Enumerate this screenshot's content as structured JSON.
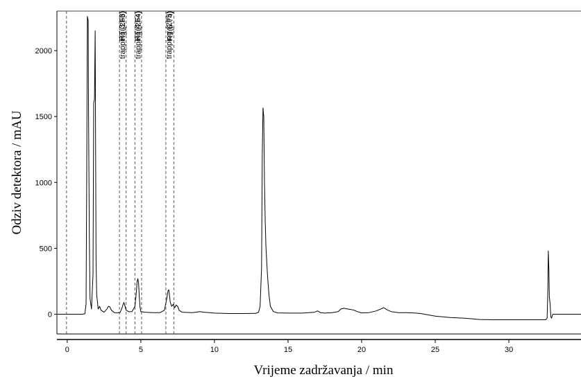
{
  "chart_data": {
    "type": "line",
    "title": "",
    "xlabel": "Vrijeme zadržavanja / min",
    "ylabel": "Odziv detektora / mAU",
    "xlim": [
      -0.7,
      34.9
    ],
    "ylim": [
      -150,
      2300
    ],
    "x_ticks": [
      0,
      5,
      10,
      15,
      20,
      25,
      30
    ],
    "y_ticks": [
      0,
      500,
      1000,
      1500,
      2000
    ],
    "x_tick_labels": [
      "0",
      "5",
      "10",
      "15",
      "20",
      "25",
      "30"
    ],
    "y_tick_labels": [
      "0",
      "500",
      "1000",
      "1500",
      "2000"
    ],
    "grid": false,
    "legend": "none",
    "line_color": "#000000",
    "marker_color": "#555555",
    "series": [
      {
        "values": [
          [
            -0.7,
            0
          ],
          [
            0.0,
            0
          ],
          [
            0.5,
            0
          ],
          [
            1.0,
            0
          ],
          [
            1.2,
            3
          ],
          [
            1.28,
            80
          ],
          [
            1.32,
            900
          ],
          [
            1.37,
            2260
          ],
          [
            1.42,
            2230
          ],
          [
            1.45,
            1500
          ],
          [
            1.5,
            600
          ],
          [
            1.55,
            120
          ],
          [
            1.65,
            40
          ],
          [
            1.75,
            300
          ],
          [
            1.8,
            1600
          ],
          [
            1.85,
            1630
          ],
          [
            1.9,
            2150
          ],
          [
            1.93,
            1200
          ],
          [
            1.96,
            400
          ],
          [
            2.0,
            150
          ],
          [
            2.1,
            40
          ],
          [
            2.2,
            60
          ],
          [
            2.3,
            30
          ],
          [
            2.5,
            15
          ],
          [
            2.7,
            40
          ],
          [
            2.8,
            60
          ],
          [
            2.9,
            55
          ],
          [
            3.0,
            30
          ],
          [
            3.2,
            12
          ],
          [
            3.4,
            10
          ],
          [
            3.6,
            15
          ],
          [
            3.7,
            40
          ],
          [
            3.8,
            75
          ],
          [
            3.85,
            90
          ],
          [
            3.9,
            70
          ],
          [
            4.0,
            30
          ],
          [
            4.2,
            18
          ],
          [
            4.4,
            20
          ],
          [
            4.6,
            60
          ],
          [
            4.7,
            170
          ],
          [
            4.75,
            250
          ],
          [
            4.8,
            270
          ],
          [
            4.85,
            230
          ],
          [
            4.9,
            120
          ],
          [
            4.95,
            50
          ],
          [
            5.0,
            20
          ],
          [
            5.3,
            15
          ],
          [
            5.8,
            12
          ],
          [
            6.3,
            12
          ],
          [
            6.6,
            30
          ],
          [
            6.75,
            110
          ],
          [
            6.85,
            180
          ],
          [
            6.9,
            185
          ],
          [
            6.95,
            140
          ],
          [
            7.0,
            90
          ],
          [
            7.1,
            60
          ],
          [
            7.2,
            75
          ],
          [
            7.3,
            50
          ],
          [
            7.4,
            70
          ],
          [
            7.5,
            60
          ],
          [
            7.6,
            30
          ],
          [
            7.8,
            15
          ],
          [
            8.5,
            12
          ],
          [
            9.0,
            20
          ],
          [
            9.3,
            15
          ],
          [
            10.0,
            8
          ],
          [
            11.0,
            5
          ],
          [
            12.0,
            5
          ],
          [
            12.8,
            6
          ],
          [
            13.0,
            15
          ],
          [
            13.1,
            60
          ],
          [
            13.2,
            350
          ],
          [
            13.25,
            1200
          ],
          [
            13.3,
            1565
          ],
          [
            13.35,
            1500
          ],
          [
            13.4,
            1000
          ],
          [
            13.45,
            700
          ],
          [
            13.5,
            500
          ],
          [
            13.6,
            300
          ],
          [
            13.7,
            150
          ],
          [
            13.8,
            60
          ],
          [
            14.0,
            20
          ],
          [
            14.3,
            10
          ],
          [
            15.0,
            8
          ],
          [
            16.0,
            8
          ],
          [
            16.8,
            15
          ],
          [
            17.0,
            25
          ],
          [
            17.2,
            12
          ],
          [
            17.5,
            8
          ],
          [
            18.0,
            12
          ],
          [
            18.4,
            20
          ],
          [
            18.6,
            40
          ],
          [
            18.8,
            45
          ],
          [
            19.0,
            40
          ],
          [
            19.3,
            35
          ],
          [
            19.5,
            30
          ],
          [
            19.7,
            20
          ],
          [
            20.0,
            10
          ],
          [
            20.5,
            12
          ],
          [
            21.0,
            25
          ],
          [
            21.3,
            40
          ],
          [
            21.5,
            50
          ],
          [
            21.7,
            35
          ],
          [
            22.0,
            20
          ],
          [
            22.5,
            12
          ],
          [
            23.0,
            12
          ],
          [
            23.5,
            10
          ],
          [
            24.0,
            5
          ],
          [
            24.5,
            -5
          ],
          [
            25.0,
            -15
          ],
          [
            26.0,
            -25
          ],
          [
            27.0,
            -30
          ],
          [
            28.0,
            -40
          ],
          [
            29.0,
            -42
          ],
          [
            30.0,
            -42
          ],
          [
            31.0,
            -42
          ],
          [
            32.0,
            -42
          ],
          [
            32.5,
            -42
          ],
          [
            32.6,
            -30
          ],
          [
            32.65,
            200
          ],
          [
            32.68,
            480
          ],
          [
            32.72,
            330
          ],
          [
            32.75,
            130
          ],
          [
            32.8,
            80
          ],
          [
            32.85,
            -20
          ],
          [
            32.9,
            -30
          ],
          [
            32.95,
            -10
          ],
          [
            33.0,
            0
          ],
          [
            33.5,
            0
          ],
          [
            34.2,
            0
          ],
          [
            34.9,
            0
          ]
        ]
      }
    ],
    "markers": [
      {
        "x": -0.05,
        "label": ""
      },
      {
        "x": 3.55,
        "label": "trapping (2F3)"
      },
      {
        "x": 4.0,
        "label": ""
      },
      {
        "x": 4.6,
        "label": "trapping (2F4)"
      },
      {
        "x": 5.05,
        "label": ""
      },
      {
        "x": 6.7,
        "label": "trapping (2F5)"
      },
      {
        "x": 7.25,
        "label": ""
      }
    ],
    "rt_labels": [
      {
        "x": 4.0,
        "label": "RT(3.66)"
      },
      {
        "x": 5.05,
        "label": "RT(4.64)"
      },
      {
        "x": 7.25,
        "label": "RT(6.74)"
      }
    ]
  }
}
